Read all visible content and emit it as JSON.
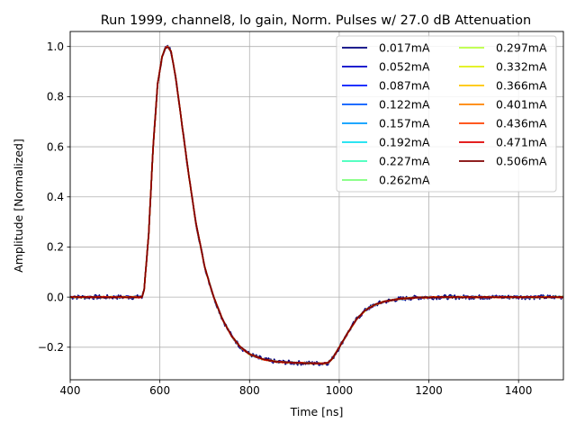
{
  "chart_data": {
    "type": "line",
    "title": "Run 1999, channel8, lo gain, Norm. Pulses w/ 27.0 dB Attenuation",
    "xlabel": "Time [ns]",
    "ylabel": "Amplitude [Normalized]",
    "xlim": [
      400,
      1500
    ],
    "ylim": [
      -0.33,
      1.06
    ],
    "xticks": [
      400,
      600,
      800,
      1000,
      1200,
      1400
    ],
    "yticks": [
      -0.2,
      0.0,
      0.2,
      0.4,
      0.6,
      0.8,
      1.0
    ],
    "ytick_labels": [
      "−0.2",
      "0.0",
      "0.2",
      "0.4",
      "0.6",
      "0.8",
      "1.0"
    ],
    "grid": true,
    "legend_position": "top-right",
    "legend_columns": 2,
    "pulse_shape": {
      "x": [
        400,
        560,
        565,
        575,
        585,
        595,
        605,
        612,
        618,
        625,
        635,
        650,
        665,
        680,
        700,
        720,
        740,
        760,
        780,
        800,
        830,
        860,
        900,
        940,
        965,
        975,
        985,
        1000,
        1020,
        1040,
        1060,
        1080,
        1100,
        1130,
        1170,
        1220,
        1300,
        1400,
        1500
      ],
      "y": [
        0.0,
        0.0,
        0.03,
        0.25,
        0.6,
        0.85,
        0.96,
        0.995,
        1.0,
        0.98,
        0.88,
        0.68,
        0.48,
        0.3,
        0.12,
        0.0,
        -0.09,
        -0.155,
        -0.2,
        -0.228,
        -0.248,
        -0.258,
        -0.262,
        -0.264,
        -0.265,
        -0.262,
        -0.245,
        -0.2,
        -0.14,
        -0.085,
        -0.05,
        -0.03,
        -0.018,
        -0.008,
        -0.002,
        0.0,
        0.0,
        0.0,
        0.0
      ]
    },
    "series": [
      {
        "name": "0.017mA",
        "color": "#00007f"
      },
      {
        "name": "0.052mA",
        "color": "#0000c8"
      },
      {
        "name": "0.087mA",
        "color": "#0014ff"
      },
      {
        "name": "0.122mA",
        "color": "#0058ff"
      },
      {
        "name": "0.157mA",
        "color": "#009cff"
      },
      {
        "name": "0.192mA",
        "color": "#0ee0f0"
      },
      {
        "name": "0.227mA",
        "color": "#3effb9"
      },
      {
        "name": "0.262mA",
        "color": "#7cff79"
      },
      {
        "name": "0.297mA",
        "color": "#b9ff3e"
      },
      {
        "name": "0.332mA",
        "color": "#e0f00b"
      },
      {
        "name": "0.366mA",
        "color": "#ffc400"
      },
      {
        "name": "0.401mA",
        "color": "#ff8200"
      },
      {
        "name": "0.436mA",
        "color": "#ff4000"
      },
      {
        "name": "0.471mA",
        "color": "#e00000"
      },
      {
        "name": "0.506mA",
        "color": "#7f0000"
      }
    ]
  }
}
